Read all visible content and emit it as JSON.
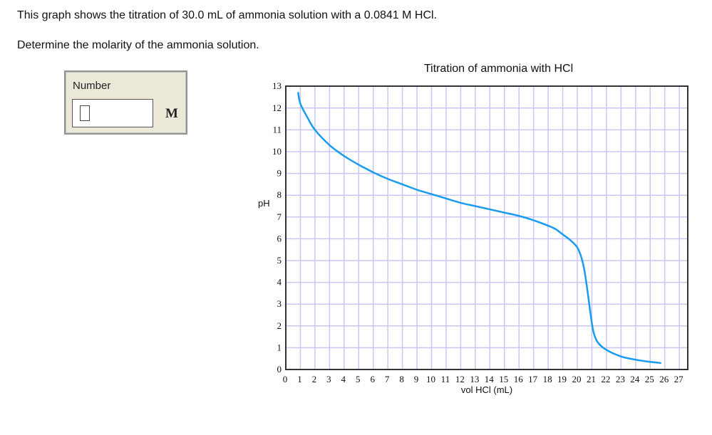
{
  "question": {
    "line1": "This graph shows the titration of 30.0 mL of ammonia solution with a 0.0841 M HCl.",
    "line2": "Determine the molarity of the ammonia solution."
  },
  "answer": {
    "label": "Number",
    "value": "",
    "unit": "M"
  },
  "chart_data": {
    "type": "line",
    "title": "Titration of ammonia with HCl",
    "xlabel": "vol HCl (mL)",
    "ylabel": "pH",
    "xlim": [
      0,
      27.6
    ],
    "ylim": [
      0,
      13
    ],
    "grid": true,
    "x_ticks": [
      0,
      1,
      2,
      3,
      4,
      5,
      6,
      7,
      8,
      9,
      10,
      11,
      12,
      13,
      14,
      15,
      16,
      17,
      18,
      19,
      20,
      21,
      22,
      23,
      24,
      25,
      26,
      27
    ],
    "y_ticks": [
      0,
      1,
      2,
      3,
      4,
      5,
      6,
      7,
      8,
      9,
      10,
      11,
      12,
      13
    ],
    "series": [
      {
        "name": "pH",
        "color": "#1a9bef",
        "x": [
          0.85,
          1,
          1.5,
          2,
          3,
          4,
          5,
          6,
          7,
          8,
          9,
          10,
          11,
          12,
          13,
          14,
          15,
          16,
          17,
          18,
          18.5,
          19,
          19.5,
          20,
          20.3,
          20.5,
          20.7,
          20.9,
          21.1,
          21.4,
          22,
          23,
          24,
          25,
          25.7
        ],
        "values": [
          12.7,
          12.2,
          11.55,
          11.0,
          10.3,
          9.8,
          9.4,
          9.05,
          8.75,
          8.5,
          8.25,
          8.05,
          7.85,
          7.65,
          7.5,
          7.35,
          7.2,
          7.05,
          6.85,
          6.6,
          6.45,
          6.2,
          5.95,
          5.6,
          5.1,
          4.5,
          3.6,
          2.6,
          1.75,
          1.25,
          0.9,
          0.6,
          0.45,
          0.35,
          0.3
        ]
      }
    ]
  }
}
